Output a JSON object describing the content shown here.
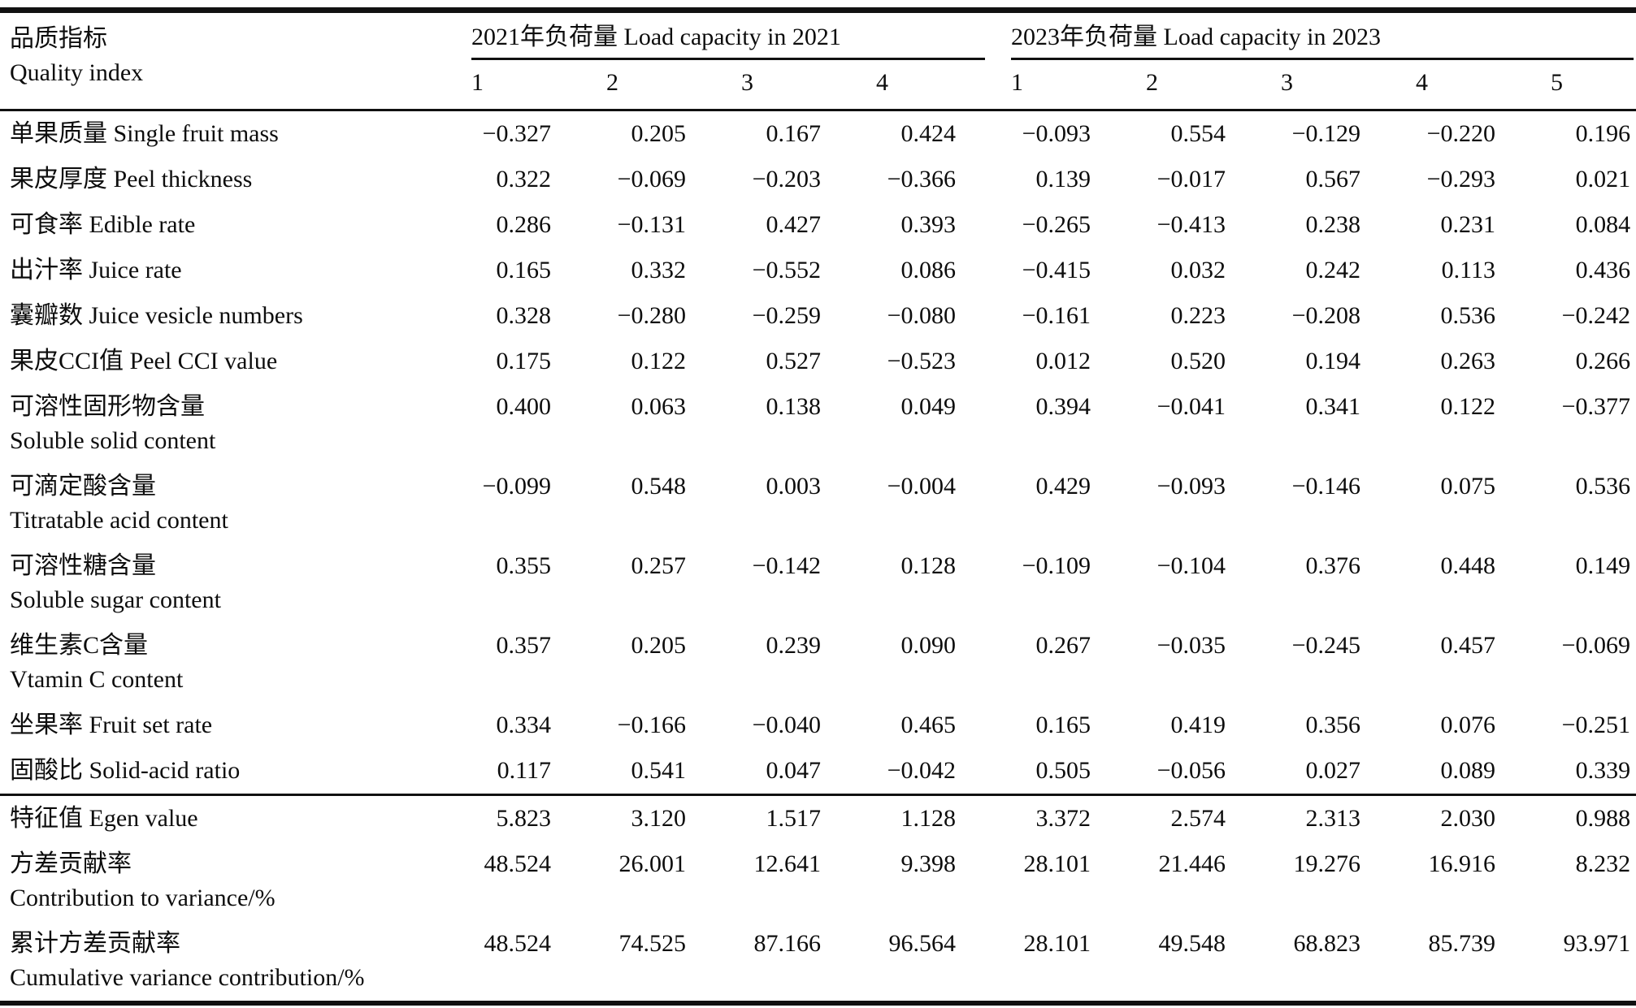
{
  "colors": {
    "background": "#ffffff",
    "text": "#0d0d0d",
    "rules": "#111111"
  },
  "table": {
    "header": {
      "quality_index_zh": "品质指标",
      "quality_index_en": "Quality index",
      "group_2021": "2021年负荷量 Load capacity in 2021",
      "group_2023": "2023年负荷量 Load capacity in 2023",
      "cols_2021": [
        "1",
        "2",
        "3",
        "4"
      ],
      "cols_2023": [
        "1",
        "2",
        "3",
        "4",
        "5"
      ]
    },
    "rows": [
      {
        "zh": "单果质量",
        "en": "Single fruit mass",
        "two_line": false,
        "rule_above": false,
        "v2021": [
          "−0.327",
          "0.205",
          "0.167",
          "0.424"
        ],
        "v2023": [
          "−0.093",
          "0.554",
          "−0.129",
          "−0.220",
          "0.196"
        ]
      },
      {
        "zh": "果皮厚度",
        "en": "Peel thickness",
        "two_line": false,
        "rule_above": false,
        "v2021": [
          "0.322",
          "−0.069",
          "−0.203",
          "−0.366"
        ],
        "v2023": [
          "0.139",
          "−0.017",
          "0.567",
          "−0.293",
          "0.021"
        ]
      },
      {
        "zh": "可食率",
        "en": "Edible rate",
        "two_line": false,
        "rule_above": false,
        "v2021": [
          "0.286",
          "−0.131",
          "0.427",
          "0.393"
        ],
        "v2023": [
          "−0.265",
          "−0.413",
          "0.238",
          "0.231",
          "0.084"
        ]
      },
      {
        "zh": "出汁率",
        "en": "Juice rate",
        "two_line": false,
        "rule_above": false,
        "v2021": [
          "0.165",
          "0.332",
          "−0.552",
          "0.086"
        ],
        "v2023": [
          "−0.415",
          "0.032",
          "0.242",
          "0.113",
          "0.436"
        ]
      },
      {
        "zh": "囊瓣数",
        "en": "Juice vesicle numbers",
        "two_line": false,
        "rule_above": false,
        "v2021": [
          "0.328",
          "−0.280",
          "−0.259",
          "−0.080"
        ],
        "v2023": [
          "−0.161",
          "0.223",
          "−0.208",
          "0.536",
          "−0.242"
        ]
      },
      {
        "zh": "果皮CCI值",
        "en": "Peel CCI value",
        "two_line": false,
        "rule_above": false,
        "v2021": [
          "0.175",
          "0.122",
          "0.527",
          "−0.523"
        ],
        "v2023": [
          "0.012",
          "0.520",
          "0.194",
          "0.263",
          "0.266"
        ]
      },
      {
        "zh": "可溶性固形物含量",
        "en": "Soluble solid content",
        "two_line": true,
        "rule_above": false,
        "v2021": [
          "0.400",
          "0.063",
          "0.138",
          "0.049"
        ],
        "v2023": [
          "0.394",
          "−0.041",
          "0.341",
          "0.122",
          "−0.377"
        ]
      },
      {
        "zh": "可滴定酸含量",
        "en": "Titratable acid content",
        "two_line": true,
        "rule_above": false,
        "v2021": [
          "−0.099",
          "0.548",
          "0.003",
          "−0.004"
        ],
        "v2023": [
          "0.429",
          "−0.093",
          "−0.146",
          "0.075",
          "0.536"
        ]
      },
      {
        "zh": "可溶性糖含量",
        "en": "Soluble sugar content",
        "two_line": true,
        "rule_above": false,
        "v2021": [
          "0.355",
          "0.257",
          "−0.142",
          "0.128"
        ],
        "v2023": [
          "−0.109",
          "−0.104",
          "0.376",
          "0.448",
          "0.149"
        ]
      },
      {
        "zh": "维生素C含量",
        "en": "Vtamin C content",
        "two_line": true,
        "rule_above": false,
        "v2021": [
          "0.357",
          "0.205",
          "0.239",
          "0.090"
        ],
        "v2023": [
          "0.267",
          "−0.035",
          "−0.245",
          "0.457",
          "−0.069"
        ]
      },
      {
        "zh": "坐果率",
        "en": "Fruit set rate",
        "two_line": false,
        "rule_above": false,
        "v2021": [
          "0.334",
          "−0.166",
          "−0.040",
          "0.465"
        ],
        "v2023": [
          "0.165",
          "0.419",
          "0.356",
          "0.076",
          "−0.251"
        ]
      },
      {
        "zh": "固酸比",
        "en": "Solid-acid ratio",
        "two_line": false,
        "rule_above": false,
        "v2021": [
          "0.117",
          "0.541",
          "0.047",
          "−0.042"
        ],
        "v2023": [
          "0.505",
          "−0.056",
          "0.027",
          "0.089",
          "0.339"
        ]
      },
      {
        "zh": "特征值",
        "en": "Egen value",
        "two_line": false,
        "rule_above": true,
        "v2021": [
          "5.823",
          "3.120",
          "1.517",
          "1.128"
        ],
        "v2023": [
          "3.372",
          "2.574",
          "2.313",
          "2.030",
          "0.988"
        ]
      },
      {
        "zh": "方差贡献率",
        "en": "Contribution to variance/%",
        "two_line": true,
        "rule_above": false,
        "v2021": [
          "48.524",
          "26.001",
          "12.641",
          "9.398"
        ],
        "v2023": [
          "28.101",
          "21.446",
          "19.276",
          "16.916",
          "8.232"
        ]
      },
      {
        "zh": "累计方差贡献率",
        "en": "Cumulative variance contribution/%",
        "two_line": true,
        "rule_above": false,
        "v2021": [
          "48.524",
          "74.525",
          "87.166",
          "96.564"
        ],
        "v2023": [
          "28.101",
          "49.548",
          "68.823",
          "85.739",
          "93.971"
        ]
      }
    ]
  }
}
